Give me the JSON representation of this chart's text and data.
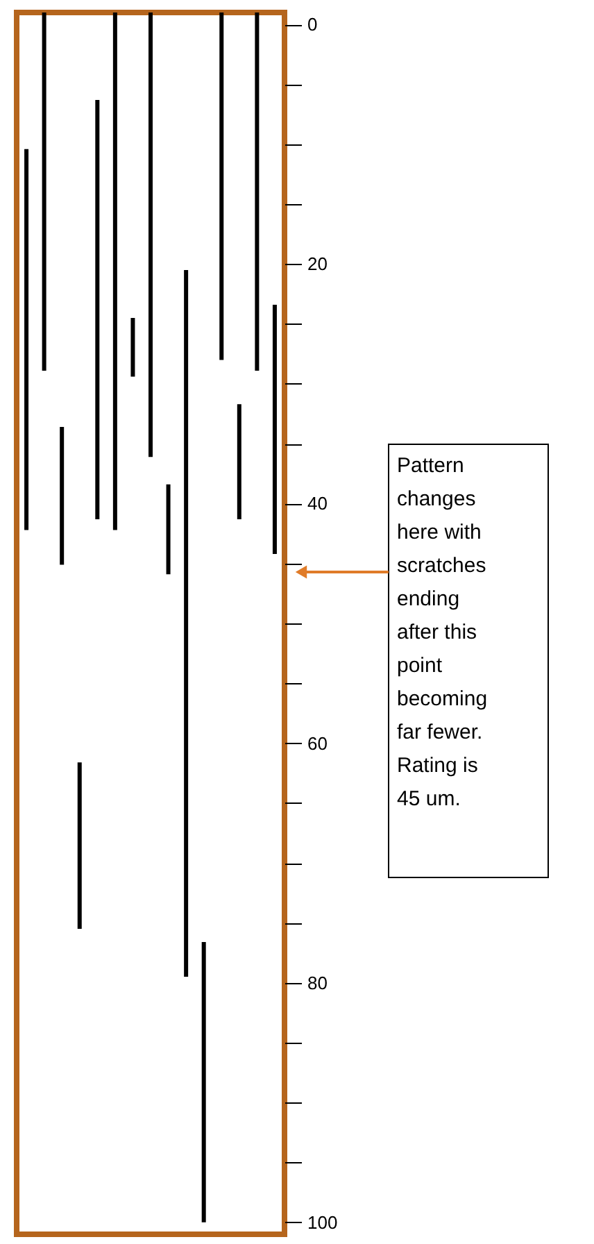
{
  "chart_data": {
    "type": "bar",
    "categories": [
      null,
      null,
      null,
      null,
      null,
      null,
      null,
      null,
      null,
      null,
      null,
      null,
      null,
      null,
      null
    ],
    "base": [
      10.4,
      -1,
      33.6,
      61.6,
      6.3,
      -1,
      24.5,
      -1,
      38.4,
      20.5,
      76.6,
      -1,
      31.7,
      -1,
      23.4
    ],
    "values": [
      31.8,
      29.9,
      11.5,
      13.9,
      35,
      43.2,
      4.9,
      37.1,
      7.5,
      59,
      23.4,
      29,
      9.6,
      29.9,
      20.8
    ],
    "color": "#000000",
    "ylim": [
      101,
      -1
    ],
    "yticks": [
      0,
      {
        "value": 5,
        "label": null
      },
      {
        "value": 10,
        "label": null
      },
      {
        "value": 15,
        "label": null
      },
      20,
      {
        "value": 25,
        "label": null
      },
      {
        "value": 30,
        "label": null
      },
      {
        "value": 35,
        "label": null
      },
      40,
      {
        "value": 45,
        "label": null
      },
      {
        "value": 50,
        "label": null
      },
      {
        "value": 55,
        "label": null
      },
      60,
      {
        "value": 65,
        "label": null
      },
      {
        "value": 70,
        "label": null
      },
      {
        "value": 75,
        "label": null
      },
      80,
      {
        "value": 85,
        "label": null
      },
      {
        "value": 90,
        "label": null
      },
      {
        "value": 95,
        "label": null
      },
      100
    ],
    "grid": false,
    "annotations": [
      "Pattern changes here with scratches ending after this point becoming far fewer. Rating is 45 um."
    ]
  }
}
